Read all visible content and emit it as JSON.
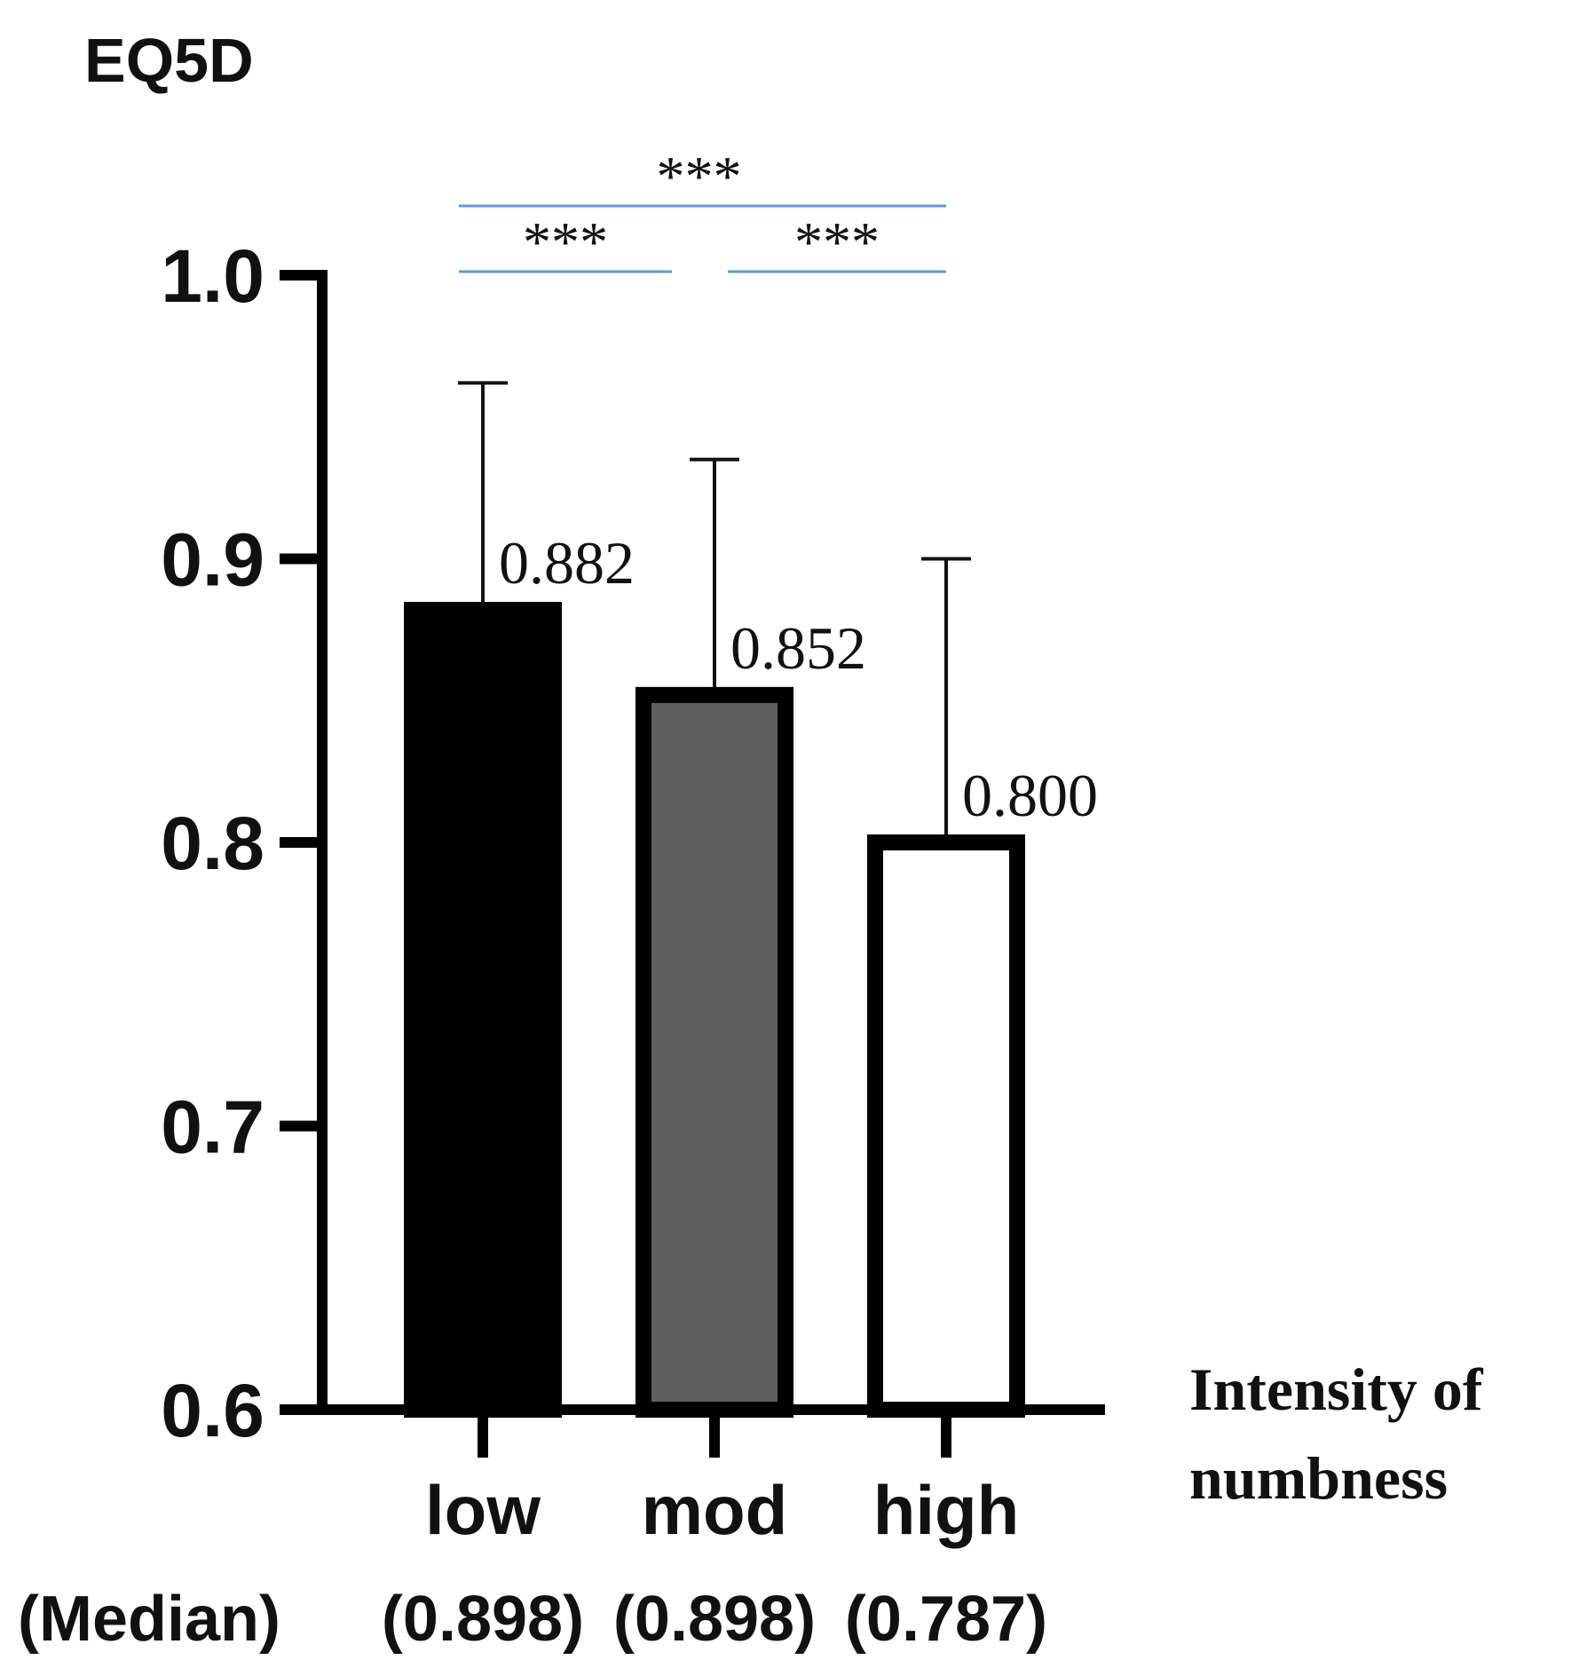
{
  "chart_data": {
    "type": "bar",
    "ylabel": "EQ5D",
    "xlabel": "Intensity of numbness",
    "categories": [
      "low",
      "mod",
      "high"
    ],
    "values": [
      0.882,
      0.852,
      0.8
    ],
    "value_labels": [
      "0.882",
      "0.852",
      "0.800"
    ],
    "error_upper": [
      0.962,
      0.935,
      0.9
    ],
    "medians_label": "(Median)",
    "medians": [
      "(0.898)",
      "(0.898)",
      "(0.787)"
    ],
    "bar_colors": [
      "#000000",
      "#5f5f5f",
      "#ffffff"
    ],
    "ylim": [
      0.6,
      1.0
    ],
    "yticks": [
      0.6,
      0.7,
      0.8,
      0.9,
      1.0
    ],
    "ytick_labels": [
      "0.6",
      "0.7",
      "0.8",
      "0.9",
      "1.0"
    ],
    "significance": [
      {
        "from": 0,
        "to": 2,
        "label": "***"
      },
      {
        "from": 0,
        "to": 1,
        "label": "***"
      },
      {
        "from": 1,
        "to": 2,
        "label": "***"
      }
    ],
    "significance_color": "#5b9bd5",
    "grid": false,
    "legend": "none"
  }
}
